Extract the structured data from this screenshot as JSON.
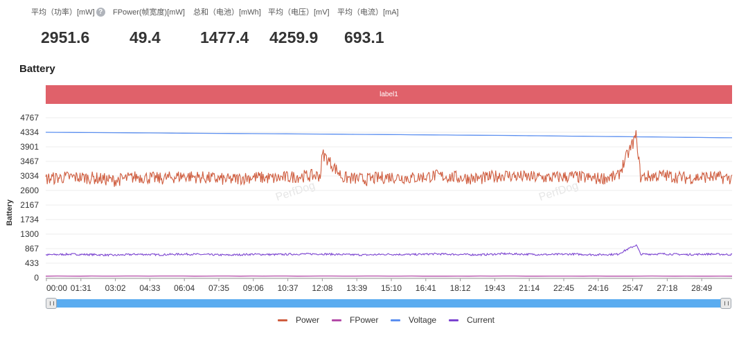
{
  "stats": [
    {
      "label": "平均（功率）[mW]",
      "value": "2951.6",
      "help": "?"
    },
    {
      "label": "FPower(帧宽度)[mW]",
      "value": "49.4"
    },
    {
      "label": "总和（电池）[mWh]",
      "value": "1477.4"
    },
    {
      "label": "平均（电压）[mV]",
      "value": "4259.9"
    },
    {
      "label": "平均（电流）[mA]",
      "value": "693.1"
    }
  ],
  "section_title": "Battery",
  "label_band": "label1",
  "watermark": "PerfDog",
  "colors": {
    "power": "#cf5d3f",
    "fpower": "#b44ba8",
    "voltage": "#5b8ff0",
    "current": "#7b43d0",
    "label_band": "#e0616a",
    "slider": "#5aacf0"
  },
  "chart_data": {
    "type": "line",
    "ylabel": "Battery",
    "y_ticks": [
      0,
      433,
      867,
      1300,
      1734,
      2167,
      2600,
      3034,
      3467,
      3901,
      4334,
      4767
    ],
    "x_ticks": [
      "00:00",
      "01:31",
      "03:02",
      "04:33",
      "06:04",
      "07:35",
      "09:06",
      "10:37",
      "12:08",
      "13:39",
      "15:10",
      "16:41",
      "18:12",
      "19:43",
      "21:14",
      "22:45",
      "24:16",
      "25:47",
      "27:18",
      "28:49"
    ],
    "ylim": [
      0,
      4767
    ],
    "x_range_seconds": [
      0,
      1800
    ],
    "grid": true,
    "legend_placement": "bottom",
    "series": [
      {
        "name": "Power",
        "key": "power",
        "x": [
          0,
          60,
          120,
          180,
          240,
          300,
          360,
          420,
          480,
          540,
          600,
          660,
          720,
          726,
          780,
          840,
          900,
          960,
          1020,
          1080,
          1140,
          1200,
          1260,
          1320,
          1380,
          1440,
          1500,
          1549,
          1560,
          1620,
          1680,
          1740,
          1800
        ],
        "values": [
          2950,
          3000,
          2980,
          2900,
          3010,
          2950,
          3030,
          2980,
          2920,
          3000,
          2960,
          3020,
          3050,
          3700,
          2980,
          2930,
          3010,
          2970,
          3040,
          2990,
          2950,
          3060,
          3000,
          2980,
          3020,
          2950,
          3010,
          4250,
          3000,
          3050,
          2970,
          3010,
          2960
        ]
      },
      {
        "name": "FPower",
        "key": "fpower",
        "x": [
          0,
          1800
        ],
        "values": [
          50,
          49
        ]
      },
      {
        "name": "Voltage",
        "key": "voltage",
        "x": [
          0,
          600,
          1200,
          1800
        ],
        "values": [
          4334,
          4290,
          4240,
          4170
        ]
      },
      {
        "name": "Current",
        "key": "current",
        "x": [
          0,
          60,
          120,
          180,
          240,
          300,
          360,
          420,
          480,
          540,
          600,
          660,
          720,
          780,
          840,
          900,
          960,
          1020,
          1080,
          1140,
          1200,
          1260,
          1320,
          1380,
          1440,
          1500,
          1549,
          1560,
          1620,
          1680,
          1740,
          1800
        ],
        "values": [
          680,
          700,
          690,
          670,
          700,
          685,
          705,
          690,
          675,
          700,
          690,
          705,
          710,
          690,
          680,
          700,
          690,
          710,
          695,
          685,
          715,
          700,
          690,
          705,
          685,
          700,
          980,
          700,
          710,
          690,
          705,
          690
        ]
      }
    ]
  }
}
